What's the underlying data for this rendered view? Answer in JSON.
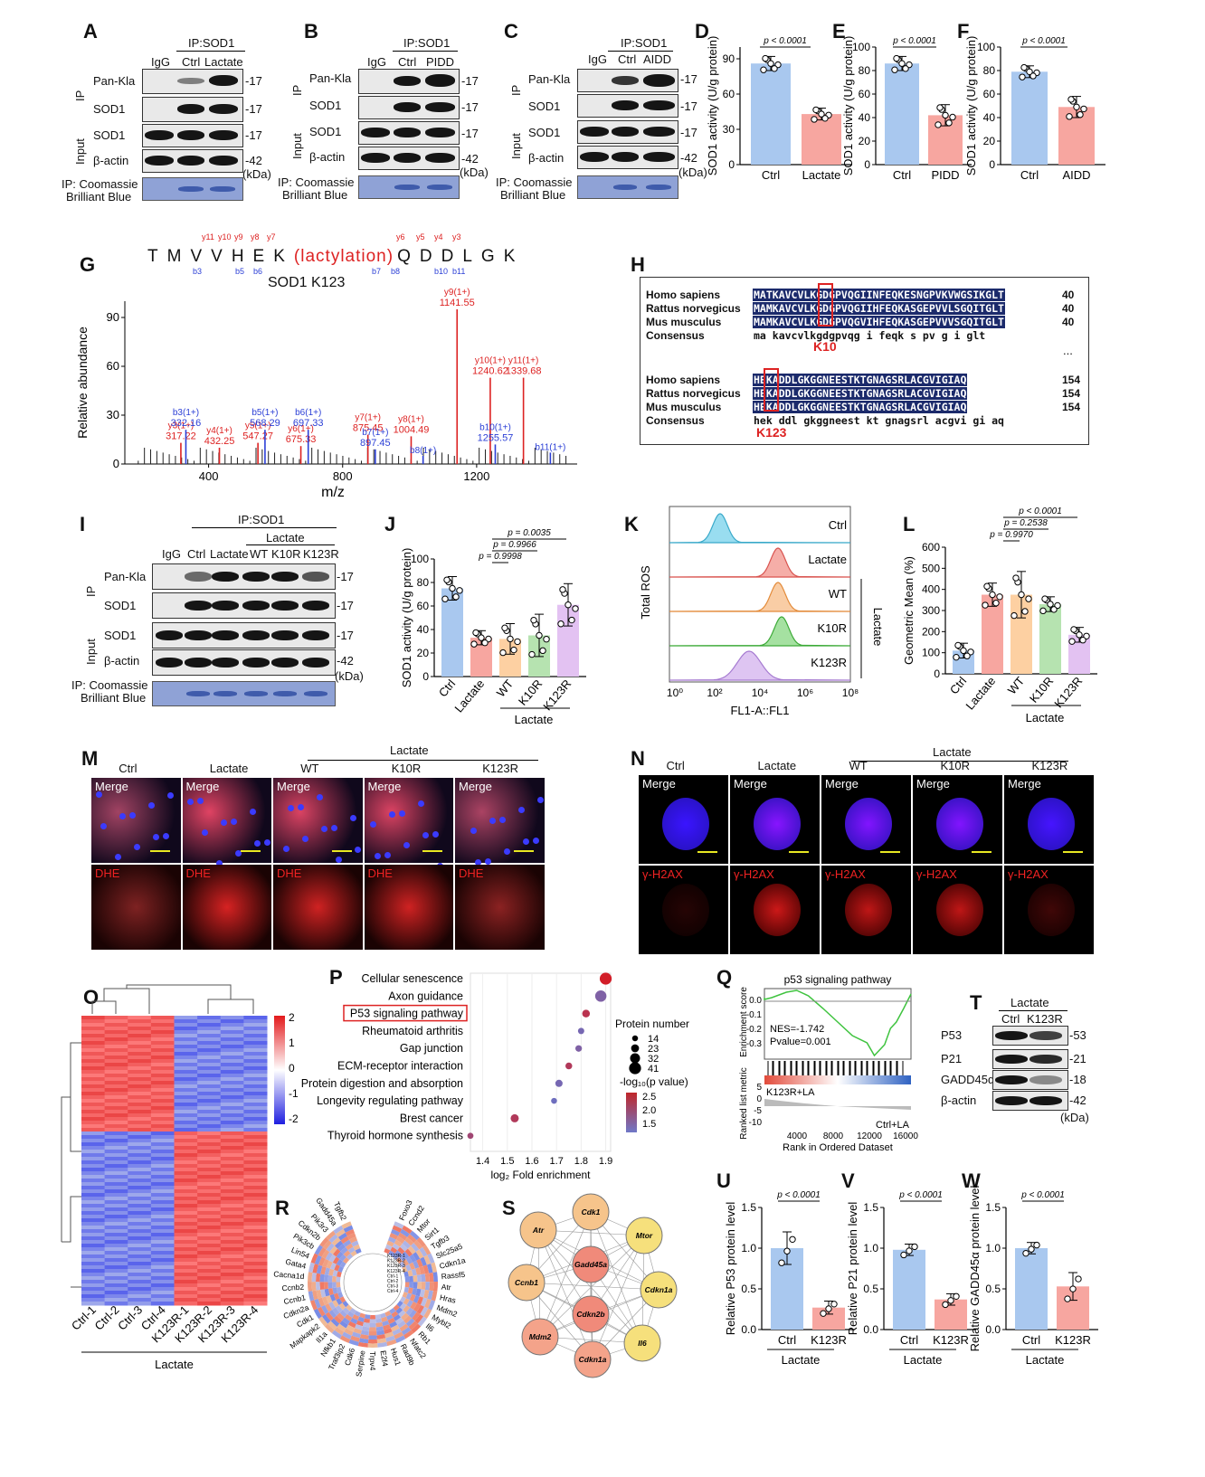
{
  "panels": {
    "A": "A",
    "B": "B",
    "C": "C",
    "D": "D",
    "E": "E",
    "F": "F",
    "G": "G",
    "H": "H",
    "I": "I",
    "J": "J",
    "K": "K",
    "L": "L",
    "M": "M",
    "N": "N",
    "O": "O",
    "P": "P",
    "Q": "Q",
    "R": "R",
    "S": "S",
    "T": "T",
    "U": "U",
    "V": "V",
    "W": "W"
  },
  "common": {
    "ip_sod1": "IP:SOD1",
    "igg": "IgG",
    "ctrl": "Ctrl",
    "lactate": "Lactate",
    "pidd": "PIDD",
    "aidd": "AIDD",
    "pan_kla": "Pan-Kla",
    "sod1": "SOD1",
    "beta_actin": "β-actin",
    "ip": "IP",
    "input": "Input",
    "kda": "(kDa)",
    "mw17": "17",
    "mw42": "42",
    "coomassie1": "IP: Coomassie",
    "coomassie2": "Brilliant Blue",
    "wt": "WT",
    "k10r": "K10R",
    "k123r": "K123R",
    "merge": "Merge",
    "dhe": "DHE",
    "h2ax": "γ-H2AX"
  },
  "bar_panels": {
    "D": {
      "ylabel": "SOD1 activity (U/g protein)",
      "p": "p < 0.0001",
      "ticks": [
        "0",
        "30",
        "60",
        "90"
      ],
      "cats": [
        "Ctrl",
        "Lactate"
      ]
    },
    "E": {
      "ylabel": "SOD1 activity (U/g protein)",
      "p": "p < 0.0001",
      "ticks": [
        "0",
        "20",
        "40",
        "60",
        "80",
        "100"
      ],
      "cats": [
        "Ctrl",
        "PIDD"
      ]
    },
    "F": {
      "ylabel": "SOD1 activity (U/g protein)",
      "p": "p < 0.0001",
      "ticks": [
        "0",
        "20",
        "40",
        "60",
        "80",
        "100"
      ],
      "cats": [
        "Ctrl",
        "AIDD"
      ]
    }
  },
  "panelG": {
    "sequence": [
      "T",
      "M",
      "V",
      "V",
      "H",
      "E",
      "K",
      "(lactylation)",
      "Q",
      "D",
      "D",
      "L",
      "G",
      "K"
    ],
    "title": "SOD1 K123",
    "ylabel": "Relative abundance",
    "xlabel": "m/z",
    "xticks": [
      "400",
      "800",
      "1200"
    ],
    "yticks": [
      "0",
      "30",
      "60",
      "90"
    ],
    "y_ions_top": [
      "y11",
      "y10",
      "y9",
      "y8",
      "y7",
      "y6",
      "y5",
      "y4",
      "y3"
    ],
    "b_ions_bottom": [
      "b3",
      "b5",
      "b6",
      "b7",
      "b8",
      "b10",
      "b11"
    ],
    "peaks": [
      {
        "label": "y3(1+)",
        "mz": "317.22"
      },
      {
        "label": "b3(1+)",
        "mz": "332.16"
      },
      {
        "label": "y4(1+)",
        "mz": "432.25"
      },
      {
        "label": "y5(1+)",
        "mz": "547.27"
      },
      {
        "label": "b5(1+)",
        "mz": "568.29"
      },
      {
        "label": "y6(1+)",
        "mz": "675.33"
      },
      {
        "label": "b6(1+)",
        "mz": "697.33"
      },
      {
        "label": "y7(1+)",
        "mz": "875.45"
      },
      {
        "label": "b7(1+)",
        "mz": "897.45"
      },
      {
        "label": "y8(1+)",
        "mz": "1004.49"
      },
      {
        "label": "b8(1+)",
        "mz": ""
      },
      {
        "label": "y9(1+)",
        "mz": "1141.55"
      },
      {
        "label": "y10(1+)",
        "mz": "1240.62"
      },
      {
        "label": "b10(1+)",
        "mz": "1255.57"
      },
      {
        "label": "y11(1+)",
        "mz": "1339.68"
      },
      {
        "label": "b11(1+)",
        "mz": ""
      }
    ]
  },
  "panelH": {
    "species": [
      "Homo sapiens",
      "Rattus norvegicus",
      "Mus musculus",
      "Consensus"
    ],
    "seq1": [
      "MATKAVCVLKGDGPVQGIINFEQKESNGPVKVWGSIKGLT",
      "MAMKAVCVLKGDGPVQGIIHFEQKASGEPVVLSGQITGLT",
      "MAMKAVCVLKGDGPVQGVIHFEQKASGEPVVVSGQITGLT"
    ],
    "cons1": "ma kavcvlkgdgpvqg i feqk s pv g i glt",
    "num1": [
      "40",
      "40",
      "40"
    ],
    "seq2": [
      "HEKADDLGKGGNEESTKTGNAGSRLACGVIGIAQ",
      "HEKADDLGKGGNEESTKTGNAGSRLACGVIGIAQ",
      "HEKADDLGKGGNEESTKTGNAGSRLACGVIGIAQ"
    ],
    "cons2": "hek ddl gkggneest kt gnagsrl acgvi gi aq",
    "num2": [
      "154",
      "154",
      "154"
    ],
    "k10": "K10",
    "k123": "K123",
    "ellipsis": "..."
  },
  "panelJ": {
    "ylabel": "SOD1 activity (U/g protein)",
    "ticks": [
      "0",
      "20",
      "40",
      "60",
      "80",
      "100"
    ],
    "cats": [
      "Ctrl",
      "Lactate",
      "WT",
      "K10R",
      "K123R"
    ],
    "p": [
      "p = 0.0035",
      "p = 0.9966",
      "p = 0.9998"
    ],
    "group": "Lactate"
  },
  "panelK": {
    "ylabel": "Total ROS",
    "xlabel": "FL1-A::FL1",
    "rows": [
      "Ctrl",
      "Lactate",
      "WT",
      "K10R",
      "K123R"
    ],
    "side": "Lactate",
    "xticks": [
      "10⁰",
      "10²",
      "10⁴",
      "10⁶",
      "10⁸"
    ]
  },
  "panelL": {
    "ylabel": "Geometric Mean (%)",
    "ticks": [
      "0",
      "100",
      "200",
      "300",
      "400",
      "500",
      "600"
    ],
    "cats": [
      "Ctrl",
      "Lactate",
      "WT",
      "K10R",
      "K123R"
    ],
    "p": [
      "p < 0.0001",
      "p = 0.2538",
      "p = 0.9970"
    ],
    "group": "Lactate"
  },
  "panelM": {
    "cols": [
      "Ctrl",
      "Lactate",
      "WT",
      "K10R",
      "K123R"
    ],
    "group": "Lactate"
  },
  "panelN": {
    "cols": [
      "Ctrl",
      "Lactate",
      "WT",
      "K10R",
      "K123R"
    ],
    "group": "Lactate"
  },
  "panelO": {
    "samples": [
      "Ctrl-1",
      "Ctrl-2",
      "Ctrl-3",
      "Ctrl-4",
      "K123R-1",
      "K123R-2",
      "K123R-3",
      "K123R-4"
    ],
    "group": "Lactate",
    "scale": [
      "2",
      "1",
      "0",
      "-1",
      "-2"
    ]
  },
  "panelP": {
    "terms": [
      "Cellular senescence",
      "Axon guidance",
      "P53 signaling pathway",
      "Rheumatoid arthritis",
      "Gap junction",
      "ECM-receptor interaction",
      "Protein digestion and absorption",
      "Longevity regulating pathway",
      "Brest cancer",
      "Thyroid hormone synthesis"
    ],
    "xticks": [
      "1.4",
      "1.5",
      "1.6",
      "1.7",
      "1.8",
      "1.9"
    ],
    "xlabel": "log₂ Fold enrichment",
    "legend_size_title": "Protein number",
    "legend_sizes": [
      "14",
      "23",
      "32",
      "41"
    ],
    "legend_color_title": "-log₁₀(p value)",
    "legend_colors": [
      "2.5",
      "2.0",
      "1.5"
    ]
  },
  "panelQ": {
    "title": "p53 signaling pathway",
    "ylabel_top": "Enrichment score",
    "ylabel_bottom": "Ranked list metric",
    "nes": "NES=-1.742",
    "pvalue": "Pvalue=0.001",
    "left": "K123R+LA",
    "right": "Ctrl+LA",
    "xlabel": "Rank in Ordered Dataset",
    "xticks": [
      "4000",
      "8000",
      "12000",
      "16000"
    ],
    "yticks_top": [
      "0.0",
      "-0.1",
      "-0.2",
      "-0.3"
    ],
    "yticks_bottom": [
      "5",
      "0",
      "-5",
      "-10"
    ]
  },
  "panelT": {
    "header": "Lactate",
    "cols": [
      "Ctrl",
      "K123R"
    ],
    "rows": [
      "P53",
      "P21",
      "GADD45α",
      "β-actin"
    ],
    "mw": [
      "53",
      "21",
      "18",
      "42"
    ],
    "kda": "(kDa)"
  },
  "panelR": {
    "genes": [
      "Foxo3",
      "Ccnd2",
      "Mtor",
      "Sirt1",
      "Tgfb3",
      "Slc25a5",
      "Cdkn1a",
      "Rassf5",
      "Atr",
      "Hras",
      "Mdm2",
      "Mybl2",
      "Il6",
      "Rb1",
      "Nfatc2",
      "Rad9b",
      "Hus1",
      "E2f4",
      "Trpv4",
      "Serpine",
      "Cdk6",
      "Traf3ip2",
      "Nfkb1",
      "Il1a",
      "Mapkapk2",
      "Cdk1",
      "Cdkn2a",
      "Ccnb1",
      "Ccnb2",
      "Cacna1d",
      "Gata4",
      "Lin54",
      "Pik3cb",
      "Cdkn2b",
      "Pik3r3",
      "Gadd45a",
      "Tgfb2"
    ],
    "inner": [
      "K123R-1",
      "K123R-2",
      "K123R-3",
      "K123R-4",
      "Ctrl-1",
      "Ctrl-2",
      "Ctrl-3",
      "Ctrl-4"
    ]
  },
  "panelS": {
    "nodes": [
      "Cdk1",
      "Mtor",
      "Cdkn1a",
      "Il6",
      "Cdkn1a",
      "Mdm2",
      "Ccnb1",
      "Atr",
      "Gadd45a",
      "Cdkn2b"
    ]
  },
  "panelU": {
    "ylabel": "Relative P53 protein level",
    "p": "p < 0.0001",
    "ticks": [
      "0.0",
      "0.5",
      "1.0",
      "1.5"
    ],
    "cats": [
      "Ctrl",
      "K123R"
    ],
    "group": "Lactate"
  },
  "panelV": {
    "ylabel": "Relative P21 protein level",
    "p": "p < 0.0001",
    "ticks": [
      "0.0",
      "0.5",
      "1.0",
      "1.5"
    ],
    "cats": [
      "Ctrl",
      "K123R"
    ],
    "group": "Lactate"
  },
  "panelW": {
    "ylabel": "Relative GADD45α protein level",
    "p": "p < 0.0001",
    "ticks": [
      "0.0",
      "0.5",
      "1.0",
      "1.5"
    ],
    "cats": [
      "Ctrl",
      "K123R"
    ],
    "group": "Lactate"
  },
  "chart_data": [
    {
      "type": "bar",
      "panel": "D",
      "categories": [
        "Ctrl",
        "Lactate"
      ],
      "values": [
        86,
        43
      ],
      "errors": [
        6,
        5
      ],
      "ylim": [
        0,
        100
      ],
      "ylabel": "SOD1 activity (U/g protein)",
      "annotation": "p < 0.0001"
    },
    {
      "type": "bar",
      "panel": "E",
      "categories": [
        "Ctrl",
        "PIDD"
      ],
      "values": [
        86,
        42
      ],
      "errors": [
        6,
        9
      ],
      "ylim": [
        0,
        100
      ],
      "ylabel": "SOD1 activity (U/g protein)",
      "annotation": "p < 0.0001"
    },
    {
      "type": "bar",
      "panel": "F",
      "categories": [
        "Ctrl",
        "AIDD"
      ],
      "values": [
        79,
        49
      ],
      "errors": [
        5,
        9
      ],
      "ylim": [
        0,
        100
      ],
      "ylabel": "SOD1 activity (U/g protein)",
      "annotation": "p < 0.0001"
    },
    {
      "type": "bar",
      "panel": "J",
      "categories": [
        "Ctrl",
        "Lactate",
        "WT",
        "K10R",
        "K123R"
      ],
      "values": [
        75,
        33,
        32,
        35,
        61
      ],
      "errors": [
        10,
        6,
        13,
        18,
        18
      ],
      "ylim": [
        0,
        100
      ],
      "ylabel": "SOD1 activity (U/g protein)"
    },
    {
      "type": "bar",
      "panel": "L",
      "categories": [
        "Ctrl",
        "Lactate",
        "WT",
        "K10R",
        "K123R"
      ],
      "values": [
        110,
        375,
        375,
        330,
        185
      ],
      "errors": [
        35,
        55,
        110,
        35,
        35
      ],
      "ylim": [
        0,
        600
      ],
      "ylabel": "Geometric Mean (%)"
    },
    {
      "type": "scatter",
      "panel": "P",
      "categories": [
        "Cellular senescence",
        "Axon guidance",
        "P53 signaling pathway",
        "Rheumatoid arthritis",
        "Gap junction",
        "ECM-receptor interaction",
        "Protein digestion and absorption",
        "Longevity regulating pathway",
        "Brest cancer",
        "Thyroid hormone synthesis"
      ],
      "x": [
        1.9,
        1.88,
        1.82,
        1.8,
        1.79,
        1.75,
        1.71,
        1.69,
        1.53,
        1.35
      ],
      "size": [
        41,
        38,
        22,
        16,
        17,
        18,
        20,
        14,
        24,
        15
      ],
      "neglog10p": [
        2.6,
        1.6,
        2.3,
        1.5,
        1.6,
        2.2,
        1.5,
        1.4,
        2.2,
        2.0
      ],
      "xlabel": "log₂ Fold enrichment"
    },
    {
      "type": "bar",
      "panel": "U",
      "categories": [
        "Ctrl",
        "K123R"
      ],
      "values": [
        1.0,
        0.27
      ],
      "errors": [
        0.2,
        0.08
      ],
      "ylim": [
        0,
        1.5
      ],
      "annotation": "p < 0.0001"
    },
    {
      "type": "bar",
      "panel": "V",
      "categories": [
        "Ctrl",
        "K123R"
      ],
      "values": [
        0.98,
        0.37
      ],
      "errors": [
        0.07,
        0.07
      ],
      "ylim": [
        0,
        1.5
      ],
      "annotation": "p < 0.0001"
    },
    {
      "type": "bar",
      "panel": "W",
      "categories": [
        "Ctrl",
        "K123R"
      ],
      "values": [
        1.0,
        0.53
      ],
      "errors": [
        0.07,
        0.17
      ],
      "ylim": [
        0,
        1.5
      ],
      "annotation": "p < 0.0001"
    }
  ]
}
